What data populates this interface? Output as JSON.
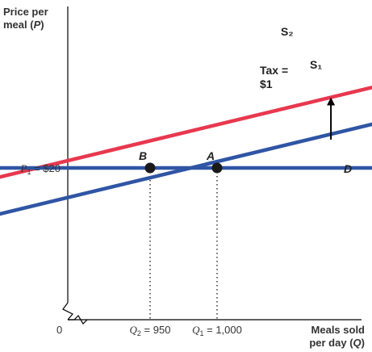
{
  "chart_data": {
    "type": "line",
    "title": "",
    "ylabel_line1": "Price per",
    "ylabel_line2": "meal (",
    "ylabel_var": "P",
    "ylabel_close": ")",
    "xlabel_line1": "Meals sold",
    "xlabel_line2": "per day (",
    "xlabel_var": "Q",
    "xlabel_close": ")",
    "origin_label": "0",
    "axis_break": true,
    "series": [
      {
        "name": "S₁",
        "color": "#2f55a4",
        "points": [
          [
            700,
            13.6
          ],
          [
            1230,
            25.7
          ]
        ]
      },
      {
        "name": "S₂",
        "color": "#e8384f",
        "points": [
          [
            660,
            15.3
          ],
          [
            1142,
            26.3
          ]
        ]
      },
      {
        "name": "D",
        "color": "#2f55a4",
        "points": [
          [
            612,
            20
          ],
          [
            1402,
            20
          ]
        ]
      }
    ],
    "points": [
      {
        "name": "A",
        "x": 1000,
        "y": 20,
        "color": "#1a1a1a"
      },
      {
        "name": "B",
        "x": 950,
        "y": 20,
        "color": "#1a1a1a"
      }
    ],
    "tick_labels": {
      "p1": {
        "var": "P",
        "sub": "1",
        "text": " = $20"
      },
      "q1": {
        "var": "Q",
        "sub": "1",
        "text": " = 1,000"
      },
      "q2": {
        "var": "Q",
        "sub": "2",
        "text": " = 950"
      }
    },
    "annotation": {
      "line1": "Tax =",
      "line2": "$1",
      "from_y": 22.0,
      "to_y": 25.0,
      "at_x": 1085
    }
  }
}
